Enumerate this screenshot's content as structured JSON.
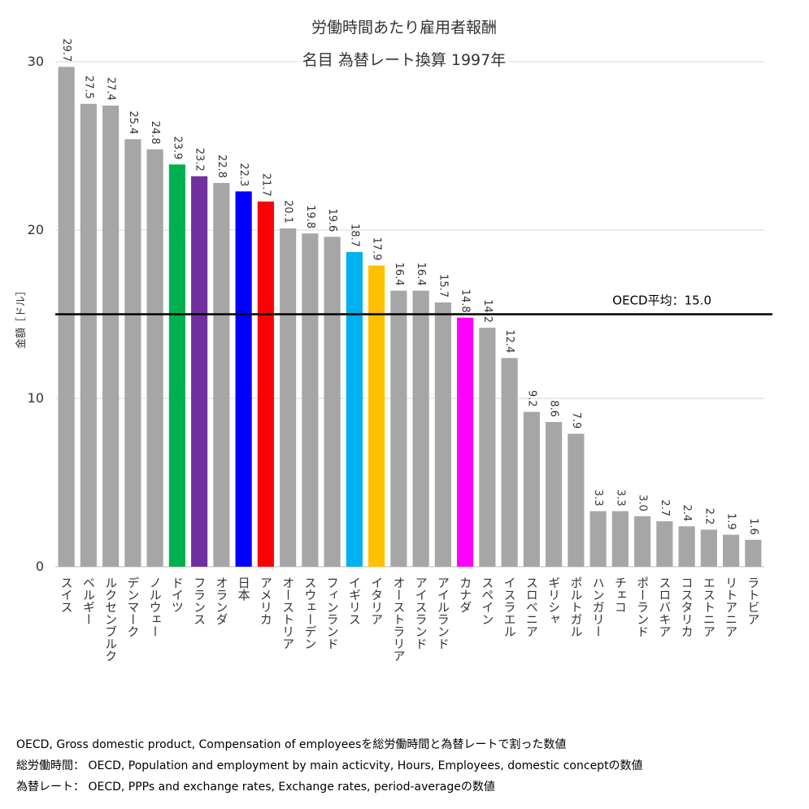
{
  "chart_data": {
    "type": "bar",
    "title": "労働時間あたり雇用者報酬",
    "subtitle": "名目 為替レート換算 1997年",
    "y_label": "金額［ドル］",
    "categories": [
      "スイス",
      "ベルギー",
      "ルクセンブルク",
      "デンマーク",
      "ノルウェー",
      "ドイツ",
      "フランス",
      "オランダ",
      "日本",
      "アメリカ",
      "オーストリア",
      "スウェーデン",
      "フィンランド",
      "イギリス",
      "イタリア",
      "オーストラリア",
      "アイスランド",
      "アイルランド",
      "カナダ",
      "スペイン",
      "イスラエル",
      "スロベニア",
      "ギリシャ",
      "ポルトガル",
      "ハンガリー",
      "チェコ",
      "ポーランド",
      "スロバキア",
      "コスタリカ",
      "エストニア",
      "リトアニア",
      "ラトビア"
    ],
    "values": [
      29.7,
      27.5,
      27.4,
      25.4,
      24.8,
      23.9,
      23.2,
      22.8,
      22.3,
      21.7,
      20.1,
      19.8,
      19.6,
      18.7,
      17.9,
      16.4,
      16.4,
      15.7,
      14.8,
      14.2,
      12.4,
      9.2,
      8.6,
      7.9,
      3.3,
      3.3,
      3.0,
      2.7,
      2.4,
      2.2,
      1.9,
      1.6
    ],
    "value_labels": [
      "29.7",
      "27.5",
      "27.4",
      "25.4",
      "24.8",
      "23.9",
      "23.2",
      "22.8",
      "22.3",
      "21.7",
      "20.1",
      "19.8",
      "19.6",
      "18.7",
      "17.9",
      "16.4",
      "16.4",
      "15.7",
      "14.8",
      "14.2",
      "12.4",
      "9.2",
      "8.6",
      "7.9",
      "3.3",
      "3.3",
      "3.0",
      "2.7",
      "2.4",
      "2.2",
      "1.9",
      "1.6"
    ],
    "colors": [
      "#a6a6a6",
      "#a6a6a6",
      "#a6a6a6",
      "#a6a6a6",
      "#a6a6a6",
      "#00b050",
      "#7030a0",
      "#a6a6a6",
      "#0000ff",
      "#ff0000",
      "#a6a6a6",
      "#a6a6a6",
      "#a6a6a6",
      "#00b0f0",
      "#ffc000",
      "#a6a6a6",
      "#a6a6a6",
      "#a6a6a6",
      "#ff00ff",
      "#a6a6a6",
      "#a6a6a6",
      "#a6a6a6",
      "#a6a6a6",
      "#a6a6a6",
      "#a6a6a6",
      "#a6a6a6",
      "#a6a6a6",
      "#a6a6a6",
      "#a6a6a6",
      "#a6a6a6",
      "#a6a6a6",
      "#a6a6a6"
    ],
    "reference": {
      "value": 15.0,
      "label": "OECD平均：15.0"
    },
    "ylim": [
      0,
      30
    ],
    "yticks": [
      0,
      10,
      20,
      30
    ],
    "grid": true,
    "notes": [
      "OECD, Gross domestic product, Compensation of employeesを総労働時間と為替レートで割った数値",
      "総労働時間： OECD, Population and employment by main acticvity, Hours, Employees, domestic conceptの数値",
      "為替レート： OECD, PPPs and exchange rates, Exchange rates, period-averageの数値"
    ]
  }
}
